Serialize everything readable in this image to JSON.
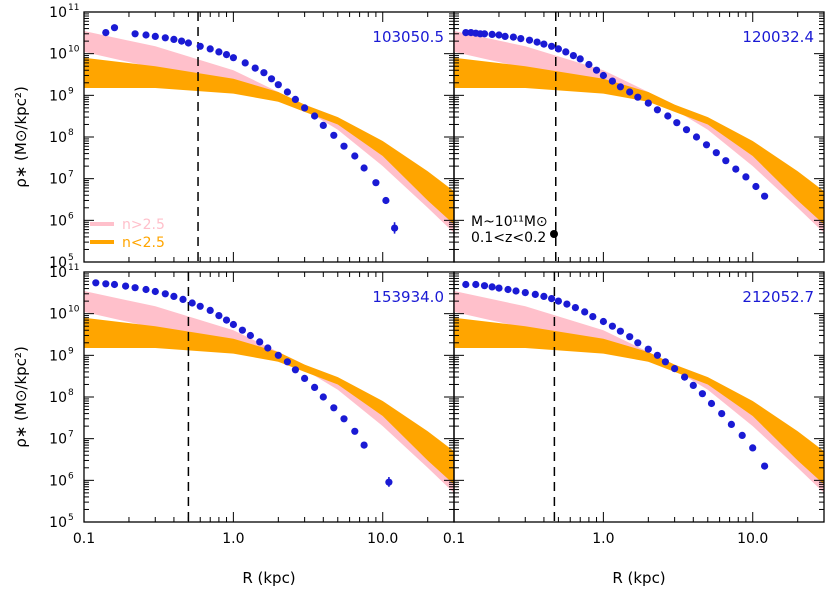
{
  "figure": {
    "xlabel": "R (kpc)",
    "ylabel": "ρ∗ (M⊙/kpc²)"
  },
  "chart_data": {
    "type": "scatter",
    "x_scale": "log",
    "y_scale": "log",
    "xlim": [
      0.1,
      30
    ],
    "ylim": [
      100000,
      100000000000
    ],
    "grid": false,
    "x_ticks": [
      {
        "value": 0.1,
        "label": "0.1"
      },
      {
        "value": 1,
        "label": "1.0"
      },
      {
        "value": 10,
        "label": "10.0"
      }
    ],
    "y_ticks": [
      {
        "value": 100000,
        "label": "10",
        "exp": "5"
      },
      {
        "value": 1000000,
        "label": "10",
        "exp": "6"
      },
      {
        "value": 10000000,
        "label": "10",
        "exp": "7"
      },
      {
        "value": 100000000,
        "label": "10",
        "exp": "8"
      },
      {
        "value": 1000000000,
        "label": "10",
        "exp": "9"
      },
      {
        "value": 10000000000,
        "label": "10",
        "exp": "10"
      },
      {
        "value": 100000000000,
        "label": "10",
        "exp": "11"
      }
    ],
    "bands": [
      {
        "name": "n>2.5",
        "color": "#ffc0cb",
        "upper": [
          [
            0.1,
            35000000000.0
          ],
          [
            0.3,
            15000000000.0
          ],
          [
            1,
            4000000000.0
          ],
          [
            2,
            1200000000.0
          ],
          [
            3,
            600000000.0
          ],
          [
            5,
            250000000.0
          ],
          [
            10,
            50000000.0
          ],
          [
            20,
            5000000.0
          ],
          [
            30,
            1500000.0
          ]
        ],
        "lower": [
          [
            0.1,
            11000000000.0
          ],
          [
            0.3,
            4500000000.0
          ],
          [
            1,
            1600000000.0
          ],
          [
            2,
            700000000.0
          ],
          [
            3,
            450000000.0
          ],
          [
            5,
            150000000.0
          ],
          [
            10,
            20000000.0
          ],
          [
            20,
            2000000.0
          ],
          [
            30,
            500000.0
          ]
        ]
      },
      {
        "name": "n<2.5",
        "color": "#ffa500",
        "upper": [
          [
            0.1,
            8000000000.0
          ],
          [
            0.3,
            5000000000.0
          ],
          [
            1,
            2500000000.0
          ],
          [
            2,
            1200000000.0
          ],
          [
            3,
            600000000.0
          ],
          [
            5,
            300000000.0
          ],
          [
            10,
            80000000.0
          ],
          [
            20,
            15000000.0
          ],
          [
            30,
            5000000.0
          ]
        ],
        "lower": [
          [
            0.1,
            1500000000.0
          ],
          [
            0.3,
            1500000000.0
          ],
          [
            1,
            1100000000.0
          ],
          [
            2,
            700000000.0
          ],
          [
            3,
            400000000.0
          ],
          [
            5,
            200000000.0
          ],
          [
            10,
            35000000.0
          ],
          [
            20,
            3000000.0
          ],
          [
            30,
            800000.0
          ]
        ]
      }
    ],
    "legend": {
      "placement": "lower-left",
      "panel": 0
    },
    "annotation": {
      "lines": [
        "M~10¹¹M⊙",
        "0.1<z<0.2"
      ],
      "panel": 1,
      "placement": "lower-left"
    },
    "panels": [
      {
        "id": "103050.5",
        "vline_x": 0.58,
        "points": [
          [
            0.14,
            32000000000.0
          ],
          [
            0.16,
            42000000000.0
          ],
          [
            0.22,
            30000000000.0
          ],
          [
            0.26,
            28000000000.0
          ],
          [
            0.3,
            26000000000.0
          ],
          [
            0.35,
            24000000000.0
          ],
          [
            0.4,
            22000000000.0
          ],
          [
            0.45,
            20000000000.0
          ],
          [
            0.5,
            18000000000.0
          ],
          [
            0.6,
            15000000000.0
          ],
          [
            0.7,
            13000000000.0
          ],
          [
            0.8,
            11000000000.0
          ],
          [
            0.9,
            9500000000.0
          ],
          [
            1.0,
            8000000000.0
          ],
          [
            1.2,
            6000000000.0
          ],
          [
            1.4,
            4500000000.0
          ],
          [
            1.6,
            3500000000.0
          ],
          [
            1.8,
            2500000000.0
          ],
          [
            2.0,
            1800000000.0
          ],
          [
            2.3,
            1200000000.0
          ],
          [
            2.6,
            800000000.0
          ],
          [
            3.0,
            500000000.0
          ],
          [
            3.5,
            320000000.0
          ],
          [
            4.0,
            190000000.0
          ],
          [
            4.7,
            110000000.0
          ],
          [
            5.5,
            60000000.0
          ],
          [
            6.5,
            35000000.0
          ],
          [
            7.5,
            18000000.0
          ],
          [
            9.0,
            8000000.0
          ],
          [
            10.5,
            3000000.0
          ],
          [
            12.0,
            650000.0
          ]
        ],
        "error_bars": [
          [
            12.0,
            480000.0,
            900000.0
          ]
        ]
      },
      {
        "id": "120032.4",
        "vline_x": 0.48,
        "points": [
          [
            0.12,
            32000000000.0
          ],
          [
            0.13,
            32000000000.0
          ],
          [
            0.14,
            31000000000.0
          ],
          [
            0.15,
            30000000000.0
          ],
          [
            0.16,
            30000000000.0
          ],
          [
            0.18,
            29000000000.0
          ],
          [
            0.2,
            28000000000.0
          ],
          [
            0.22,
            26000000000.0
          ],
          [
            0.25,
            25000000000.0
          ],
          [
            0.28,
            23000000000.0
          ],
          [
            0.32,
            21000000000.0
          ],
          [
            0.36,
            19000000000.0
          ],
          [
            0.4,
            17000000000.0
          ],
          [
            0.45,
            15000000000.0
          ],
          [
            0.5,
            13000000000.0
          ],
          [
            0.56,
            11000000000.0
          ],
          [
            0.63,
            9000000000.0
          ],
          [
            0.7,
            7500000000.0
          ],
          [
            0.8,
            5500000000.0
          ],
          [
            0.9,
            4000000000.0
          ],
          [
            1.0,
            3000000000.0
          ],
          [
            1.15,
            2200000000.0
          ],
          [
            1.3,
            1600000000.0
          ],
          [
            1.5,
            1200000000.0
          ],
          [
            1.7,
            900000000.0
          ],
          [
            2.0,
            650000000.0
          ],
          [
            2.3,
            450000000.0
          ],
          [
            2.7,
            320000000.0
          ],
          [
            3.1,
            220000000.0
          ],
          [
            3.6,
            150000000.0
          ],
          [
            4.2,
            100000000.0
          ],
          [
            4.9,
            65000000.0
          ],
          [
            5.7,
            42000000.0
          ],
          [
            6.6,
            27000000.0
          ],
          [
            7.7,
            17000000.0
          ],
          [
            9.0,
            11000000.0
          ],
          [
            10.5,
            6500000.0
          ],
          [
            12.0,
            3800000.0
          ]
        ],
        "error_bars": []
      },
      {
        "id": "153934.0",
        "vline_x": 0.5,
        "points": [
          [
            0.12,
            55000000000.0
          ],
          [
            0.14,
            52000000000.0
          ],
          [
            0.16,
            50000000000.0
          ],
          [
            0.19,
            46000000000.0
          ],
          [
            0.22,
            42000000000.0
          ],
          [
            0.26,
            38000000000.0
          ],
          [
            0.3,
            34000000000.0
          ],
          [
            0.35,
            30000000000.0
          ],
          [
            0.4,
            26000000000.0
          ],
          [
            0.46,
            22000000000.0
          ],
          [
            0.53,
            18000000000.0
          ],
          [
            0.6,
            15000000000.0
          ],
          [
            0.7,
            12000000000.0
          ],
          [
            0.8,
            9000000000.0
          ],
          [
            0.9,
            7000000000.0
          ],
          [
            1.0,
            5500000000.0
          ],
          [
            1.15,
            4000000000.0
          ],
          [
            1.3,
            3000000000.0
          ],
          [
            1.5,
            2100000000.0
          ],
          [
            1.7,
            1500000000.0
          ],
          [
            2.0,
            1000000000.0
          ],
          [
            2.3,
            700000000.0
          ],
          [
            2.6,
            450000000.0
          ],
          [
            3.0,
            280000000.0
          ],
          [
            3.5,
            170000000.0
          ],
          [
            4.0,
            100000000.0
          ],
          [
            4.7,
            55000000.0
          ],
          [
            5.5,
            30000000.0
          ],
          [
            6.5,
            15000000.0
          ],
          [
            7.5,
            7000000.0
          ],
          [
            11.0,
            900000.0
          ]
        ],
        "error_bars": [
          [
            11.0,
            700000.0,
            1200000.0
          ]
        ]
      },
      {
        "id": "212052.7",
        "vline_x": 0.47,
        "points": [
          [
            0.12,
            50000000000.0
          ],
          [
            0.14,
            50000000000.0
          ],
          [
            0.16,
            47000000000.0
          ],
          [
            0.18,
            44000000000.0
          ],
          [
            0.2,
            41000000000.0
          ],
          [
            0.23,
            38000000000.0
          ],
          [
            0.26,
            35000000000.0
          ],
          [
            0.3,
            32000000000.0
          ],
          [
            0.35,
            29000000000.0
          ],
          [
            0.4,
            26000000000.0
          ],
          [
            0.45,
            23000000000.0
          ],
          [
            0.5,
            20000000000.0
          ],
          [
            0.57,
            17000000000.0
          ],
          [
            0.65,
            14000000000.0
          ],
          [
            0.75,
            11000000000.0
          ],
          [
            0.85,
            8500000000.0
          ],
          [
            1.0,
            6500000000.0
          ],
          [
            1.15,
            5000000000.0
          ],
          [
            1.3,
            3800000000.0
          ],
          [
            1.5,
            2800000000.0
          ],
          [
            1.7,
            2000000000.0
          ],
          [
            2.0,
            1400000000.0
          ],
          [
            2.3,
            1000000000.0
          ],
          [
            2.6,
            700000000.0
          ],
          [
            3.0,
            480000000.0
          ],
          [
            3.5,
            300000000.0
          ],
          [
            4.0,
            190000000.0
          ],
          [
            4.6,
            120000000.0
          ],
          [
            5.3,
            70000000.0
          ],
          [
            6.2,
            40000000.0
          ],
          [
            7.2,
            22000000.0
          ],
          [
            8.5,
            12000000.0
          ],
          [
            10.0,
            6000000.0
          ],
          [
            12.0,
            2200000.0
          ]
        ],
        "error_bars": []
      }
    ],
    "colors": {
      "points": "#1a1ad4",
      "panel_id": "#1a1ad4",
      "frame": "#000000",
      "vline": "#000000",
      "annotation_marker": "#000000"
    }
  }
}
